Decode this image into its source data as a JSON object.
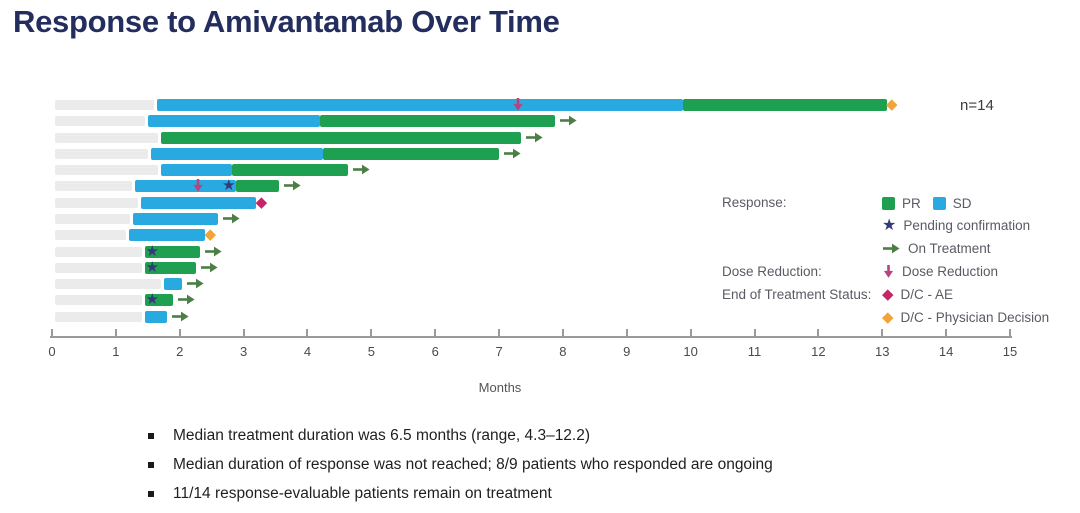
{
  "title": "Response to Amivantamab Over Time",
  "n_label": "n=14",
  "axis": {
    "label": "Months",
    "min": 0,
    "max": 15,
    "ticks": [
      0,
      1,
      2,
      3,
      4,
      5,
      6,
      7,
      8,
      9,
      10,
      11,
      12,
      13,
      14,
      15
    ]
  },
  "colors": {
    "pr": "#1ea050",
    "sd": "#28aae1",
    "lead": "#ebebeb",
    "pending": "#333a7a",
    "on_treatment": "#4c7f45",
    "dose_reduction": "#b8437f",
    "dc_ae": "#c6256a",
    "dc_physician": "#f2a437",
    "title": "#232d5e"
  },
  "icons": {
    "pending": "star",
    "on_treatment": "arrow-right",
    "dose_reduction": "arrow-down",
    "dc_ae": "diamond",
    "dc_physician": "diamond",
    "pr": "square",
    "sd": "square"
  },
  "legend": {
    "rows": [
      {
        "label": "Response:",
        "items": [
          {
            "icon": "square",
            "color": "pr",
            "text": "PR"
          },
          {
            "icon": "square",
            "color": "sd",
            "text": "SD"
          }
        ]
      },
      {
        "label": "",
        "items": [
          {
            "icon": "star",
            "color": "pending",
            "text": "Pending confirmation"
          }
        ]
      },
      {
        "label": "",
        "items": [
          {
            "icon": "arrow-right",
            "color": "on_treatment",
            "text": "On Treatment"
          }
        ]
      },
      {
        "label": "Dose Reduction:",
        "items": [
          {
            "icon": "arrow-down",
            "color": "dose_reduction",
            "text": "Dose Reduction"
          }
        ]
      },
      {
        "label": "End of Treatment Status:",
        "items": [
          {
            "icon": "diamond",
            "color": "dc_ae",
            "text": "D/C - AE"
          }
        ]
      },
      {
        "label": "",
        "items": [
          {
            "icon": "diamond",
            "color": "dc_physician",
            "text": "D/C - Physician Decision"
          }
        ]
      }
    ]
  },
  "chart_data": {
    "type": "swimmer",
    "title": "Response to Amivantamab Over Time",
    "xlabel": "Months",
    "xlim": [
      0,
      15
    ],
    "n": 14,
    "patients": [
      {
        "segments": [
          {
            "response": "SD",
            "start": 1.65,
            "end": 9.88
          },
          {
            "response": "PR",
            "start": 9.88,
            "end": 13.07
          }
        ],
        "markers": [
          {
            "type": "dose_reduction",
            "month": 7.3
          },
          {
            "type": "dc_physician"
          }
        ]
      },
      {
        "segments": [
          {
            "response": "SD",
            "start": 1.5,
            "end": 4.2
          },
          {
            "response": "PR",
            "start": 4.2,
            "end": 7.88
          }
        ],
        "markers": [
          {
            "type": "on_treatment"
          }
        ]
      },
      {
        "segments": [
          {
            "response": "PR",
            "start": 1.7,
            "end": 7.35
          }
        ],
        "markers": [
          {
            "type": "on_treatment"
          }
        ]
      },
      {
        "segments": [
          {
            "response": "SD",
            "start": 1.55,
            "end": 4.25
          },
          {
            "response": "PR",
            "start": 4.25,
            "end": 7.0
          }
        ],
        "markers": [
          {
            "type": "on_treatment"
          }
        ]
      },
      {
        "segments": [
          {
            "response": "SD",
            "start": 1.7,
            "end": 2.82
          },
          {
            "response": "PR",
            "start": 2.82,
            "end": 4.63
          }
        ],
        "markers": [
          {
            "type": "on_treatment"
          }
        ]
      },
      {
        "segments": [
          {
            "response": "SD",
            "start": 1.3,
            "end": 2.88
          },
          {
            "response": "PR",
            "start": 2.88,
            "end": 3.55
          }
        ],
        "markers": [
          {
            "type": "dose_reduction",
            "month": 2.28
          },
          {
            "type": "pending",
            "month": 2.77
          },
          {
            "type": "on_treatment"
          }
        ]
      },
      {
        "segments": [
          {
            "response": "SD",
            "start": 1.4,
            "end": 3.2
          }
        ],
        "markers": [
          {
            "type": "dc_ae"
          }
        ]
      },
      {
        "segments": [
          {
            "response": "SD",
            "start": 1.27,
            "end": 2.6
          }
        ],
        "markers": [
          {
            "type": "on_treatment"
          }
        ]
      },
      {
        "segments": [
          {
            "response": "SD",
            "start": 1.2,
            "end": 2.4
          }
        ],
        "markers": [
          {
            "type": "dc_physician"
          }
        ]
      },
      {
        "segments": [
          {
            "response": "PR",
            "start": 1.45,
            "end": 2.32
          }
        ],
        "markers": [
          {
            "type": "pending",
            "month": 1.57
          },
          {
            "type": "on_treatment"
          }
        ]
      },
      {
        "segments": [
          {
            "response": "PR",
            "start": 1.45,
            "end": 2.26
          }
        ],
        "markers": [
          {
            "type": "pending",
            "month": 1.57
          },
          {
            "type": "on_treatment"
          }
        ]
      },
      {
        "segments": [
          {
            "response": "SD",
            "start": 1.75,
            "end": 2.04
          }
        ],
        "markers": [
          {
            "type": "on_treatment"
          }
        ]
      },
      {
        "segments": [
          {
            "response": "PR",
            "start": 1.45,
            "end": 1.9
          }
        ],
        "markers": [
          {
            "type": "pending",
            "month": 1.57
          },
          {
            "type": "on_treatment"
          }
        ]
      },
      {
        "segments": [
          {
            "response": "SD",
            "start": 1.46,
            "end": 1.8
          }
        ],
        "markers": [
          {
            "type": "on_treatment"
          }
        ]
      }
    ]
  },
  "footnotes": [
    "Median treatment duration was 6.5 months (range, 4.3–12.2)",
    "Median duration of response was not reached; 8/9 patients who responded are ongoing",
    "11/14 response-evaluable patients remain on treatment"
  ]
}
